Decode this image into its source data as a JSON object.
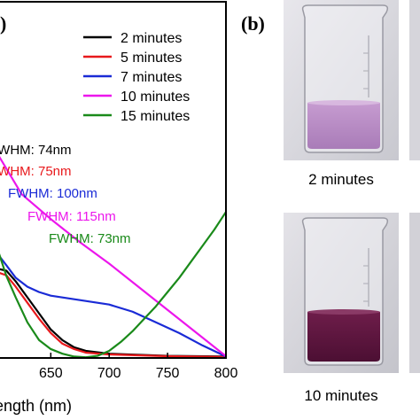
{
  "panel_a_label": ")",
  "panel_b_label": "(b)",
  "photo_captions": [
    "2 minutes",
    "10 minutes"
  ],
  "chart_data": {
    "type": "line",
    "xlabel": "ength (nm)",
    "ylabel": "",
    "xlim": [
      605,
      800
    ],
    "ylim": [
      0,
      1
    ],
    "xticks": [
      "650",
      "700",
      "750",
      "800"
    ],
    "xtick_values": [
      650,
      700,
      750,
      800
    ],
    "legend_placement": "top-right",
    "series": [
      {
        "name": "2 minutes",
        "color": "#000000",
        "x": [
          605,
          612,
          620,
          630,
          640,
          650,
          660,
          670,
          680,
          700,
          750,
          800
        ],
        "y": [
          0.25,
          0.245,
          0.215,
          0.17,
          0.125,
          0.08,
          0.05,
          0.03,
          0.02,
          0.012,
          0.006,
          0.004
        ]
      },
      {
        "name": "5 minutes",
        "color": "#e8191c",
        "x": [
          605,
          612,
          620,
          630,
          640,
          650,
          660,
          670,
          680,
          700,
          750,
          800
        ],
        "y": [
          0.24,
          0.232,
          0.2,
          0.155,
          0.11,
          0.07,
          0.04,
          0.025,
          0.015,
          0.01,
          0.005,
          0.003
        ]
      },
      {
        "name": "7 minutes",
        "color": "#1a2bd6",
        "x": [
          605,
          612,
          620,
          630,
          640,
          650,
          660,
          670,
          680,
          690,
          700,
          720,
          740,
          760,
          780,
          800
        ],
        "y": [
          0.29,
          0.26,
          0.225,
          0.2,
          0.185,
          0.175,
          0.17,
          0.165,
          0.16,
          0.155,
          0.15,
          0.13,
          0.1,
          0.07,
          0.035,
          0.004
        ]
      },
      {
        "name": "10 minutes",
        "color": "#ec16ec",
        "x": [
          605,
          625,
          650,
          675,
          700,
          725,
          750,
          775,
          800
        ],
        "y": [
          0.57,
          0.46,
          0.39,
          0.325,
          0.265,
          0.2,
          0.135,
          0.07,
          0.005
        ]
      },
      {
        "name": "15 minutes",
        "color": "#1a8a1a",
        "x": [
          605,
          612,
          620,
          630,
          640,
          650,
          660,
          670,
          680,
          690,
          700,
          710,
          720,
          730,
          740,
          750,
          760,
          770,
          780,
          790,
          800
        ],
        "y": [
          0.3,
          0.23,
          0.17,
          0.1,
          0.05,
          0.025,
          0.012,
          0.004,
          0.002,
          0.006,
          0.02,
          0.045,
          0.075,
          0.11,
          0.145,
          0.185,
          0.225,
          0.27,
          0.315,
          0.36,
          0.41
        ]
      }
    ],
    "annotations": [
      {
        "text": "FWHM: 74nm",
        "color": "#000000"
      },
      {
        "text": "FWHM: 75nm",
        "color": "#e8191c"
      },
      {
        "text": "FWHM: 100nm",
        "color": "#1a2bd6"
      },
      {
        "text": "FWHM: 115nm",
        "color": "#ec16ec"
      },
      {
        "text": "FWHM: 73nm",
        "color": "#1a8a1a"
      }
    ]
  }
}
